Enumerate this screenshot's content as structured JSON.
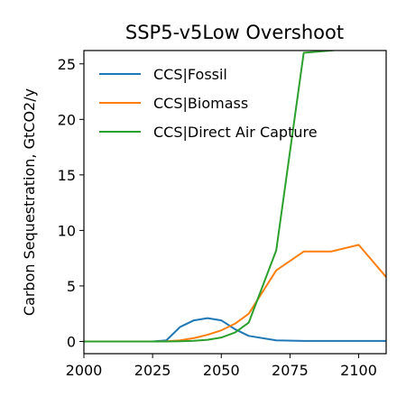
{
  "chart_data": {
    "type": "line",
    "title": "SSP5-v5Low Overshoot",
    "xlabel": "",
    "ylabel": "Carbon Sequestration, GtCO2/y",
    "xlim": [
      2000,
      2110
    ],
    "ylim": [
      -1.1,
      26.2
    ],
    "xticks": [
      2000,
      2025,
      2050,
      2075,
      2100
    ],
    "yticks": [
      0,
      5,
      10,
      15,
      20,
      25
    ],
    "legend": "upper left",
    "grid": false,
    "series": [
      {
        "name": "CCS|Fossil",
        "color": "#1f77b4",
        "x": [
          2000,
          2005,
          2010,
          2015,
          2020,
          2025,
          2030,
          2035,
          2040,
          2045,
          2050,
          2055,
          2060,
          2070,
          2080,
          2090,
          2100,
          2110
        ],
        "y": [
          0,
          0,
          0,
          0,
          0,
          0,
          0.1,
          1.3,
          1.9,
          2.1,
          1.9,
          1.1,
          0.5,
          0.1,
          0.05,
          0.05,
          0.05,
          0.05
        ]
      },
      {
        "name": "CCS|Biomass",
        "color": "#ff7f0e",
        "x": [
          2000,
          2005,
          2010,
          2015,
          2020,
          2025,
          2030,
          2035,
          2040,
          2045,
          2050,
          2055,
          2060,
          2070,
          2080,
          2090,
          2100,
          2110
        ],
        "y": [
          0,
          0,
          0,
          0,
          0,
          0,
          0.02,
          0.1,
          0.3,
          0.6,
          1.0,
          1.6,
          2.5,
          6.4,
          8.1,
          8.1,
          8.7,
          5.8
        ]
      },
      {
        "name": "CCS|Direct Air Capture",
        "color": "#2ca02c",
        "x": [
          2000,
          2005,
          2010,
          2015,
          2020,
          2025,
          2030,
          2035,
          2040,
          2045,
          2050,
          2055,
          2060,
          2070,
          2080,
          2090,
          2100
        ],
        "y": [
          0,
          0,
          0,
          0,
          0,
          0,
          0,
          0.02,
          0.06,
          0.15,
          0.35,
          0.8,
          1.7,
          8.2,
          26.0,
          26.2,
          26.5
        ]
      }
    ]
  }
}
